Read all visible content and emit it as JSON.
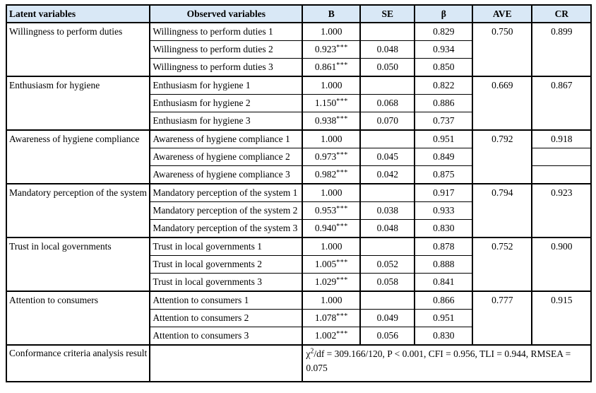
{
  "columns": {
    "latent": "Latent variables",
    "observed": "Observed variables",
    "b": "B",
    "se": "SE",
    "beta": "β",
    "ave": "AVE",
    "cr": "CR"
  },
  "groups": [
    {
      "latent": "Willingness to perform duties",
      "ave": "0.750",
      "cr": "0.899",
      "rows": [
        {
          "observed": "Willingness to perform duties 1",
          "b": "1.000",
          "b_sup": "",
          "se": "",
          "beta": "0.829"
        },
        {
          "observed": "Willingness to perform duties 2",
          "b": "0.923",
          "b_sup": "***",
          "se": "0.048",
          "beta": "0.934"
        },
        {
          "observed": "Willingness to perform duties 3",
          "b": "0.861",
          "b_sup": "***",
          "se": "0.050",
          "beta": "0.850"
        }
      ]
    },
    {
      "latent": "Enthusiasm for hygiene",
      "ave": "0.669",
      "cr": "0.867",
      "rows": [
        {
          "observed": "Enthusiasm for hygiene 1",
          "b": "1.000",
          "b_sup": "",
          "se": "",
          "beta": "0.822"
        },
        {
          "observed": "Enthusiasm for hygiene 2",
          "b": "1.150",
          "b_sup": "***",
          "se": "0.068",
          "beta": "0.886"
        },
        {
          "observed": "Enthusiasm for hygiene 3",
          "b": "0.938",
          "b_sup": "***",
          "se": "0.070",
          "beta": "0.737"
        }
      ]
    },
    {
      "latent": "Awareness of hygiene compliance",
      "ave": "0.792",
      "cr": "0.918",
      "rows": [
        {
          "observed": "Awareness of hygiene compliance 1",
          "b": "1.000",
          "b_sup": "",
          "se": "",
          "beta": "0.951"
        },
        {
          "observed": "Awareness of hygiene compliance 2",
          "b": "0.973",
          "b_sup": "***",
          "se": "0.045",
          "beta": "0.849"
        },
        {
          "observed": "Awareness of hygiene compliance 3",
          "b": "0.982",
          "b_sup": "***",
          "se": "0.042",
          "beta": "0.875"
        }
      ]
    },
    {
      "latent": "Mandatory perception of the system",
      "ave": "0.794",
      "cr": "0.923",
      "rows": [
        {
          "observed": "Mandatory perception of the system 1",
          "b": "1.000",
          "b_sup": "",
          "se": "",
          "beta": "0.917"
        },
        {
          "observed": "Mandatory perception of the system 2",
          "b": "0.953",
          "b_sup": "***",
          "se": "0.038",
          "beta": "0.933"
        },
        {
          "observed": "Mandatory perception of the system 3",
          "b": "0.940",
          "b_sup": "***",
          "se": "0.048",
          "beta": "0.830"
        }
      ]
    },
    {
      "latent": "Trust in local governments",
      "ave": "0.752",
      "cr": "0.900",
      "rows": [
        {
          "observed": "Trust in local governments 1",
          "b": "1.000",
          "b_sup": "",
          "se": "",
          "beta": "0.878"
        },
        {
          "observed": "Trust in local governments 2",
          "b": "1.005",
          "b_sup": "***",
          "se": "0.052",
          "beta": "0.888"
        },
        {
          "observed": "Trust in local governments 3",
          "b": "1.029",
          "b_sup": "***",
          "se": "0.058",
          "beta": "0.841"
        }
      ]
    },
    {
      "latent": "Attention to consumers",
      "ave": "0.777",
      "cr": "0.915",
      "rows": [
        {
          "observed": "Attention to consumers 1",
          "b": "1.000",
          "b_sup": "",
          "se": "",
          "beta": "0.866"
        },
        {
          "observed": "Attention to consumers 2",
          "b": "1.078",
          "b_sup": "***",
          "se": "0.049",
          "beta": "0.951"
        },
        {
          "observed": "Attention to consumers 3",
          "b": "1.002",
          "b_sup": "***",
          "se": "0.056",
          "beta": "0.830"
        }
      ]
    }
  ],
  "footer": {
    "label": "Conformance criteria analysis result",
    "chi": "χ",
    "chi_sup": "2",
    "fit_text": "/df = 309.166/120, P < 0.001, CFI = 0.956, TLI = 0.944, RMSEA = 0.075"
  },
  "colors": {
    "header_bg": "#d9e8f6",
    "border": "#000000"
  }
}
